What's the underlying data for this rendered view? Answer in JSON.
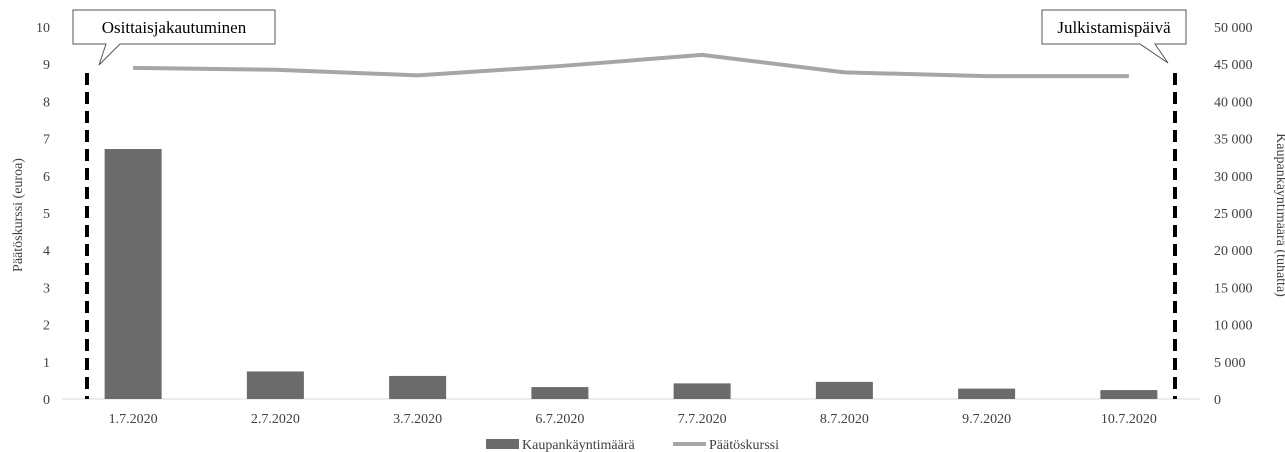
{
  "chart_data": {
    "type": "bar",
    "categories": [
      "1.7.2020",
      "2.7.2020",
      "3.7.2020",
      "6.7.2020",
      "7.7.2020",
      "8.7.2020",
      "9.7.2020",
      "10.7.2020"
    ],
    "series": [
      {
        "name": "Kaupankäyntimäärä",
        "type": "bar",
        "axis": "right",
        "color": "#6b6b6b",
        "values": [
          33600,
          3700,
          3100,
          1600,
          2100,
          2300,
          1400,
          1200
        ]
      },
      {
        "name": "Päätöskurssi",
        "type": "line",
        "axis": "left",
        "color": "#a6a6a6",
        "values": [
          8.9,
          8.85,
          8.7,
          8.95,
          9.25,
          8.78,
          8.68,
          8.68
        ]
      }
    ],
    "ylabel": "Päätöskurssi (euroa)",
    "y2label": "Kaupankäyntimäärä (tuhatta)",
    "ylim": [
      0,
      10
    ],
    "y2lim": [
      0,
      50000
    ],
    "yticks": [
      "0",
      "1",
      "2",
      "3",
      "4",
      "5",
      "6",
      "7",
      "8",
      "9",
      "10"
    ],
    "y2ticks": [
      "0",
      "5 000",
      "10 000",
      "15 000",
      "20 000",
      "25 000",
      "30 000",
      "35 000",
      "40 000",
      "45 000",
      "50 000"
    ],
    "grid": false,
    "legend": "bottom-center",
    "annotations": [
      {
        "text": "Osittaisjakautuminen",
        "at": "start"
      },
      {
        "text": "Julkistamispäivä",
        "at": "end"
      }
    ]
  }
}
